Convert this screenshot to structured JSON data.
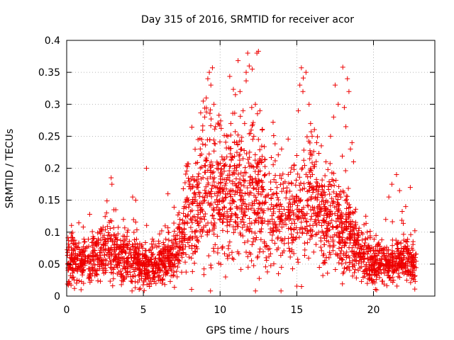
{
  "chart_data": {
    "type": "scatter",
    "title": "Day 315 of 2016, SRMTID for receiver acor",
    "xlabel": "GPS time / hours",
    "ylabel": "SRMTID / TECUs",
    "xlim": [
      0,
      24
    ],
    "ylim": [
      0,
      0.4
    ],
    "xticks": [
      0,
      5,
      10,
      15,
      20
    ],
    "xtick_labels": [
      "0",
      "5",
      "10",
      "15",
      "20"
    ],
    "yticks": [
      0,
      0.05,
      0.1,
      0.15,
      0.2,
      0.25,
      0.3,
      0.35,
      0.4
    ],
    "ytick_labels": [
      "0",
      "0.05",
      "0.1",
      "0.15",
      "0.2",
      "0.25",
      "0.3",
      "0.35",
      "0.4"
    ],
    "grid": true,
    "marker": "plus",
    "color": "#ee0000",
    "series": [
      {
        "name": "SRMTID",
        "profile": {
          "x": [
            0,
            1,
            2,
            3,
            4,
            5,
            6,
            7,
            7.5,
            8,
            9,
            10,
            11,
            12,
            13,
            14,
            15,
            16,
            17,
            18,
            19,
            20,
            21,
            22,
            22.8
          ],
          "y": [
            0.055,
            0.055,
            0.065,
            0.07,
            0.06,
            0.045,
            0.05,
            0.065,
            0.09,
            0.13,
            0.16,
            0.155,
            0.165,
            0.16,
            0.13,
            0.125,
            0.14,
            0.15,
            0.12,
            0.11,
            0.07,
            0.05,
            0.045,
            0.06,
            0.045
          ]
        },
        "points": [
          [
            9.3,
            0.35
          ],
          [
            9.5,
            0.357
          ],
          [
            9.2,
            0.34
          ],
          [
            9.4,
            0.33
          ],
          [
            9.1,
            0.31
          ],
          [
            8.9,
            0.305
          ],
          [
            9.6,
            0.3
          ],
          [
            9.0,
            0.28
          ],
          [
            9.7,
            0.265
          ],
          [
            8.8,
            0.245
          ],
          [
            9.8,
            0.2
          ],
          [
            8.7,
            0.22
          ],
          [
            11.3,
            0.32
          ],
          [
            11.0,
            0.315
          ],
          [
            11.5,
            0.29
          ],
          [
            11.7,
            0.35
          ],
          [
            11.9,
            0.36
          ],
          [
            11.8,
            0.38
          ],
          [
            12.1,
            0.355
          ],
          [
            12.4,
            0.38
          ],
          [
            12.5,
            0.383
          ],
          [
            12.3,
            0.3
          ],
          [
            12.6,
            0.29
          ],
          [
            11.6,
            0.27
          ],
          [
            12.2,
            0.25
          ],
          [
            12.5,
            0.245
          ],
          [
            11.4,
            0.23
          ],
          [
            12.7,
            0.21
          ],
          [
            10.7,
            0.27
          ],
          [
            10.5,
            0.25
          ],
          [
            15.3,
            0.357
          ],
          [
            15.6,
            0.35
          ],
          [
            15.2,
            0.33
          ],
          [
            15.4,
            0.32
          ],
          [
            15.8,
            0.3
          ],
          [
            15.1,
            0.29
          ],
          [
            15.9,
            0.27
          ],
          [
            16.0,
            0.25
          ],
          [
            16.3,
            0.24
          ],
          [
            16.6,
            0.235
          ],
          [
            15.0,
            0.22
          ],
          [
            16.9,
            0.21
          ],
          [
            17.5,
            0.33
          ],
          [
            17.7,
            0.3
          ],
          [
            17.4,
            0.28
          ],
          [
            17.2,
            0.25
          ],
          [
            18.0,
            0.358
          ],
          [
            18.3,
            0.34
          ],
          [
            18.4,
            0.32
          ],
          [
            18.1,
            0.295
          ],
          [
            18.2,
            0.265
          ],
          [
            18.6,
            0.24
          ],
          [
            18.5,
            0.23
          ],
          [
            18.7,
            0.21
          ],
          [
            2.9,
            0.185
          ],
          [
            2.95,
            0.175
          ],
          [
            5.2,
            0.2
          ],
          [
            4.3,
            0.155
          ],
          [
            4.5,
            0.15
          ],
          [
            6.6,
            0.16
          ],
          [
            21.5,
            0.19
          ],
          [
            21.2,
            0.175
          ],
          [
            21.7,
            0.165
          ],
          [
            21.0,
            0.155
          ],
          [
            22.4,
            0.17
          ],
          [
            1.5,
            0.128
          ],
          [
            2.6,
            0.13
          ],
          [
            3.2,
            0.135
          ],
          [
            3.7,
            0.12
          ],
          [
            20.8,
            0.12
          ],
          [
            22.1,
            0.14
          ],
          [
            19.5,
            0.125
          ],
          [
            7.2,
            0.03
          ],
          [
            5.4,
            0.015
          ],
          [
            1.1,
            0.02
          ],
          [
            19.9,
            0.025
          ],
          [
            22.6,
            0.028
          ],
          [
            14.0,
            0.045
          ],
          [
            13.0,
            0.06
          ],
          [
            9.6,
            0.07
          ],
          [
            17.1,
            0.06
          ],
          [
            18.3,
            0.045
          ],
          [
            4.8,
            0.012
          ],
          [
            0.2,
            0.02
          ]
        ],
        "seed": 31516,
        "count": 2800
      }
    ]
  }
}
